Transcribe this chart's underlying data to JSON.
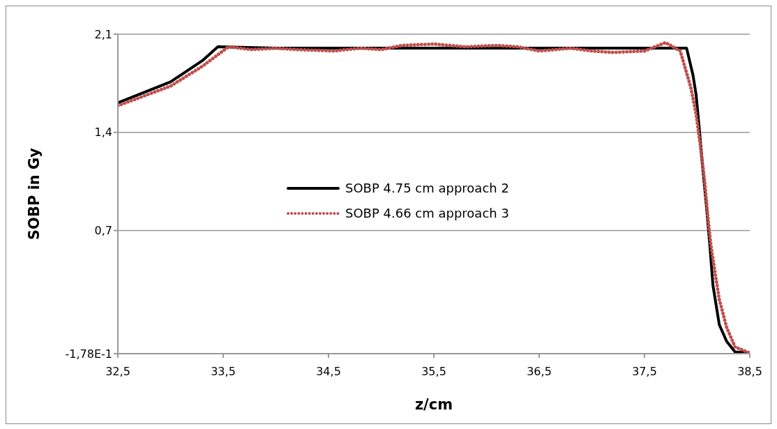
{
  "chart_data": {
    "type": "line",
    "xlabel": "z/cm",
    "ylabel": "SOBP in Gy",
    "xlim": [
      32.5,
      38.5
    ],
    "xticks": [
      {
        "value": 32.5,
        "label": "32,5"
      },
      {
        "value": 33.5,
        "label": "33,5"
      },
      {
        "value": 34.5,
        "label": "34,5"
      },
      {
        "value": 35.5,
        "label": "35,5"
      },
      {
        "value": 36.5,
        "label": "36,5"
      },
      {
        "value": 37.5,
        "label": "37,5"
      },
      {
        "value": 38.5,
        "label": "38,5"
      }
    ],
    "ylim": [
      -0.178,
      2.1
    ],
    "yticks": [
      {
        "value": -0.178,
        "label": "-1,78E-1"
      },
      {
        "value": 0.7,
        "label": "0,7"
      },
      {
        "value": 1.4,
        "label": "1,4"
      },
      {
        "value": 2.1,
        "label": "2,1"
      }
    ],
    "grid": "y",
    "legend": "center",
    "marker": "none",
    "series": [
      {
        "name": "SOBP 4.75 cm approach 2",
        "color": "#000000",
        "line_style": "solid",
        "x": [
          32.5,
          33.0,
          33.3,
          33.45,
          34.0,
          34.5,
          35.0,
          35.5,
          36.0,
          36.5,
          37.0,
          37.5,
          37.9,
          37.96,
          37.99,
          38.02,
          38.05,
          38.09,
          38.12,
          38.15,
          38.21,
          38.28,
          38.36,
          38.49
        ],
        "values": [
          1.61,
          1.76,
          1.91,
          2.01,
          2.0,
          2.0,
          2.0,
          2.0,
          2.0,
          2.0,
          2.0,
          2.0,
          2.0,
          1.81,
          1.67,
          1.43,
          1.17,
          0.86,
          0.6,
          0.31,
          0.03,
          -0.09,
          -0.166,
          -0.17
        ]
      },
      {
        "name": "SOBP 4.66 cm approach 3",
        "color": "#c0504d",
        "line_style": "dotted",
        "x": [
          32.5,
          33.0,
          33.3,
          33.55,
          33.77,
          34.0,
          34.2,
          34.55,
          34.8,
          35.0,
          35.2,
          35.5,
          35.8,
          36.1,
          36.3,
          36.5,
          36.8,
          37.0,
          37.2,
          37.5,
          37.7,
          37.84,
          37.89,
          37.94,
          37.99,
          38.03,
          38.07,
          38.1,
          38.13,
          38.17,
          38.21,
          38.28,
          38.36,
          38.49
        ],
        "values": [
          1.59,
          1.73,
          1.87,
          2.01,
          1.99,
          2.0,
          1.99,
          1.98,
          2.0,
          1.99,
          2.02,
          2.03,
          2.01,
          2.02,
          2.01,
          1.98,
          2.0,
          1.98,
          1.97,
          1.98,
          2.04,
          1.98,
          1.85,
          1.72,
          1.53,
          1.31,
          1.06,
          0.81,
          0.6,
          0.4,
          0.21,
          0.01,
          -0.13,
          -0.17
        ]
      }
    ]
  }
}
